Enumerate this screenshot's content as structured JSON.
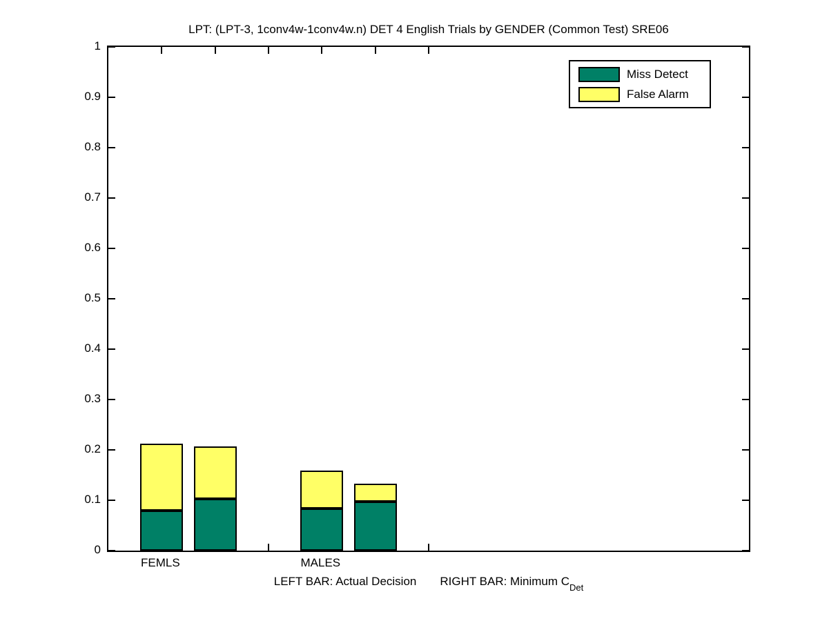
{
  "chart_data": {
    "type": "bar",
    "stacked": true,
    "title": "LPT: (LPT-3, 1conv4w-1conv4w.n) DET 4 English Trials by GENDER (Common Test) SRE06",
    "xlabel_left": "LEFT BAR: Actual Decision",
    "xlabel_right": "RIGHT BAR: Minimum C",
    "xlabel_sub": "Det",
    "ylim": [
      0,
      1
    ],
    "xlim": [
      0.5,
      6.5
    ],
    "yticks": [
      0,
      0.1,
      0.2,
      0.3,
      0.4,
      0.5,
      0.6,
      0.7,
      0.8,
      0.9,
      1
    ],
    "xticks": [
      1,
      1.5,
      2,
      2.5,
      3,
      3.5
    ],
    "xtick_labels": [
      "FEMLS",
      "",
      "",
      "MALES",
      "",
      ""
    ],
    "bar_width": 0.4,
    "grid": false,
    "background": "#ffffff",
    "axis_color": "#000000",
    "legend": {
      "position": "top-right",
      "entries": [
        "Miss Detect",
        "False Alarm"
      ]
    },
    "series": [
      {
        "name": "Miss Detect",
        "color": "#008066"
      },
      {
        "name": "False Alarm",
        "color": "#ffff66"
      }
    ],
    "bars": [
      {
        "x": 1,
        "group": "FEMLS",
        "bar": "Actual Decision",
        "miss_detect": 0.08,
        "false_alarm": 0.133,
        "total": 0.213
      },
      {
        "x": 1.5,
        "group": "FEMLS",
        "bar": "Minimum CDet",
        "miss_detect": 0.103,
        "false_alarm": 0.104,
        "total": 0.207
      },
      {
        "x": 2.5,
        "group": "MALES",
        "bar": "Actual Decision",
        "miss_detect": 0.083,
        "false_alarm": 0.076,
        "total": 0.159
      },
      {
        "x": 3,
        "group": "MALES",
        "bar": "Minimum CDet",
        "miss_detect": 0.097,
        "false_alarm": 0.036,
        "total": 0.133
      }
    ]
  }
}
